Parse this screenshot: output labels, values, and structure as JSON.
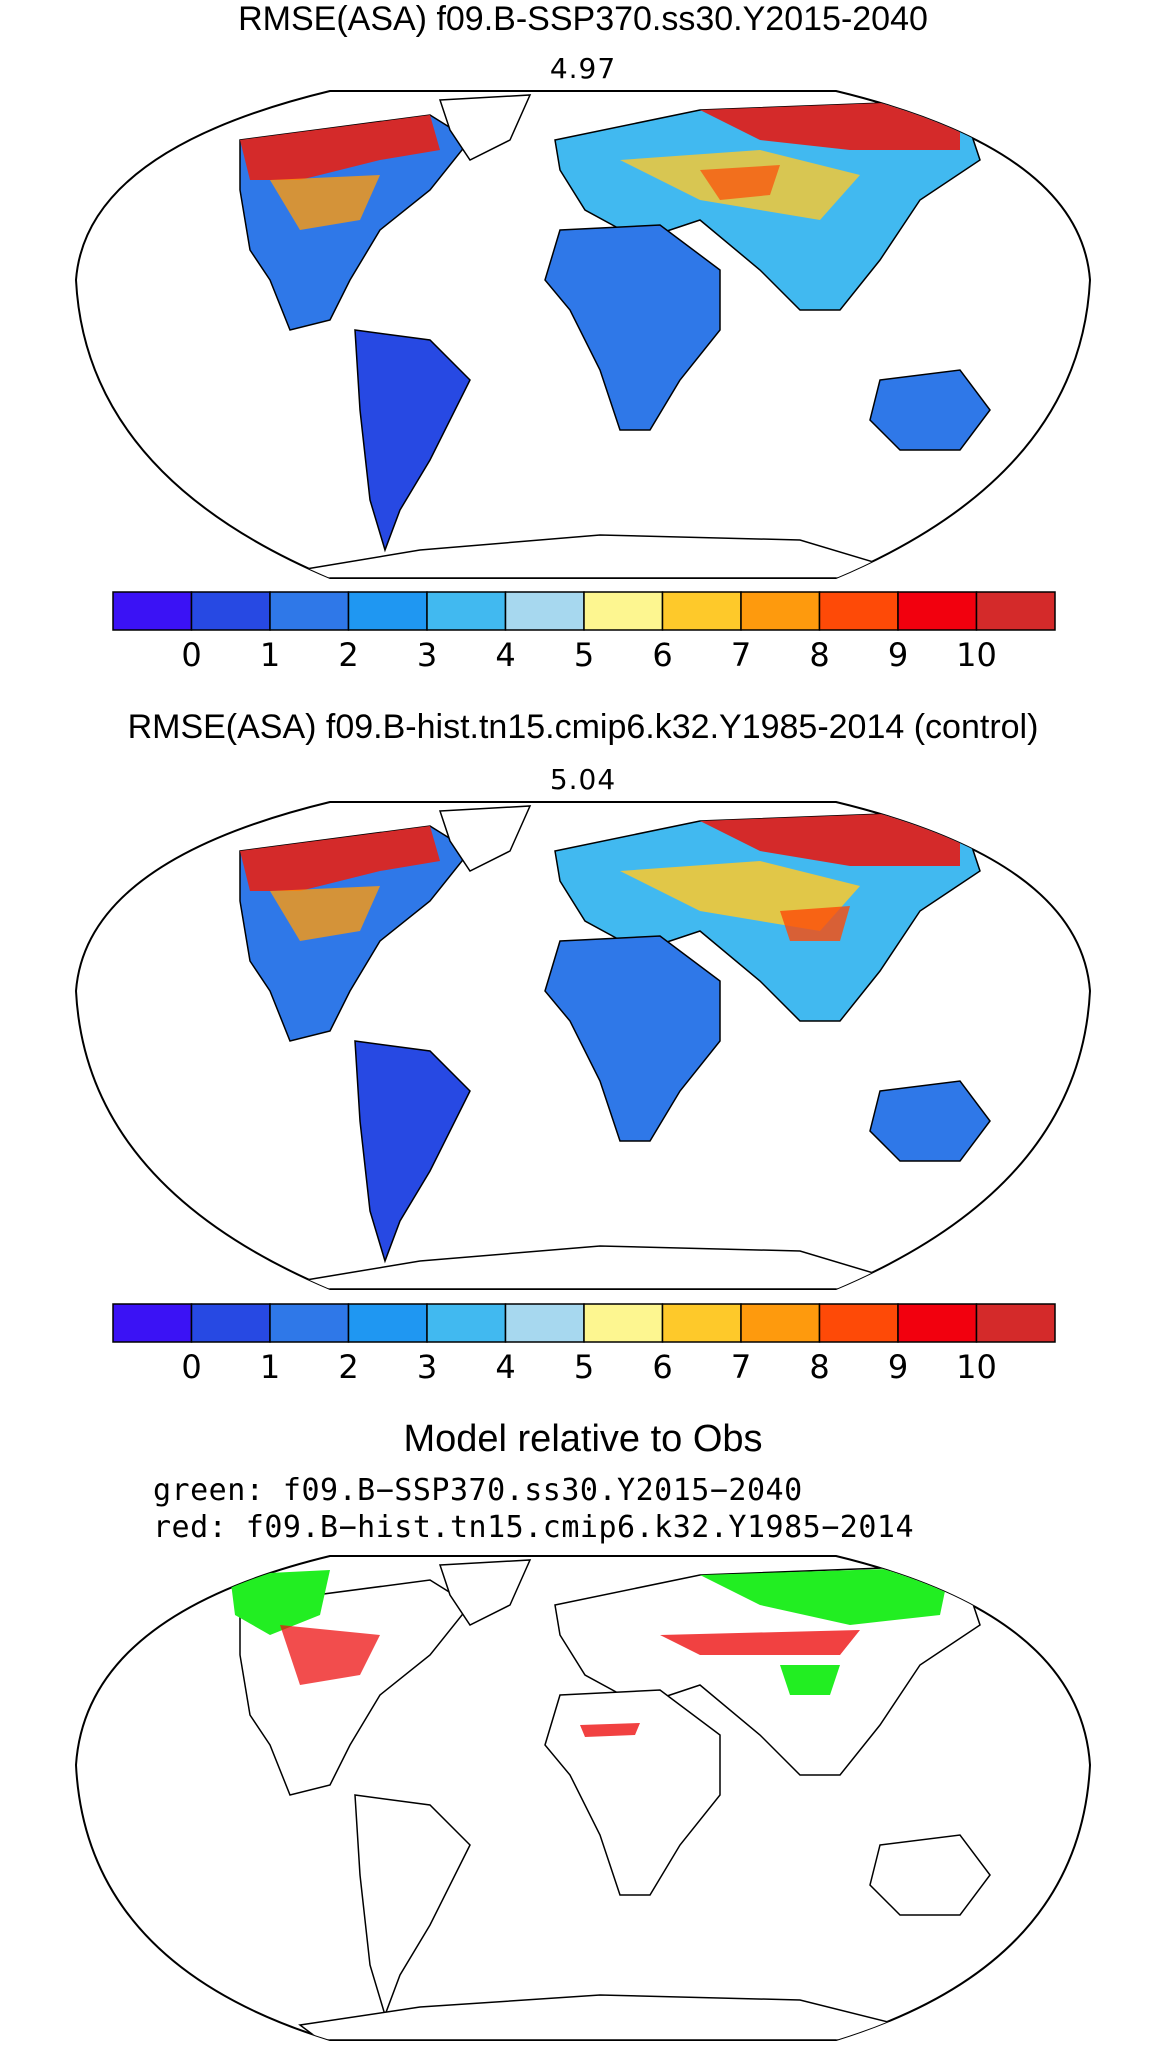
{
  "panels": [
    {
      "title": "RMSE(ASA) f09.B-SSP370.ss30.Y2015-2040",
      "value": "4.97",
      "projection": "Robinson",
      "field": "filled RMSE over land, scale 0 to 10+"
    },
    {
      "title": "RMSE(ASA) f09.B-hist.tn15.cmip6.k32.Y1985-2014 (control)",
      "value": "5.04",
      "projection": "Robinson",
      "field": "filled RMSE over land, scale 0 to 10+"
    }
  ],
  "colorbar": {
    "labels": [
      "0",
      "1",
      "2",
      "3",
      "4",
      "5",
      "6",
      "7",
      "8",
      "9",
      "10"
    ],
    "colors": [
      "#3b12f5",
      "#2749e3",
      "#2f78e8",
      "#1f97f2",
      "#41b9f0",
      "#a7d8ef",
      "#fdf690",
      "#fec92a",
      "#fe9a0d",
      "#fe4a07",
      "#f2000e",
      "#d42a2a"
    ]
  },
  "comparison": {
    "title": "Model relative to Obs",
    "legend_green": "green: f09.B−SSP370.ss30.Y2015−2040",
    "legend_red": "red: f09.B−hist.tn15.cmip6.k32.Y1985−2014",
    "green_color": "#22ee22",
    "red_color": "#ee1111"
  }
}
